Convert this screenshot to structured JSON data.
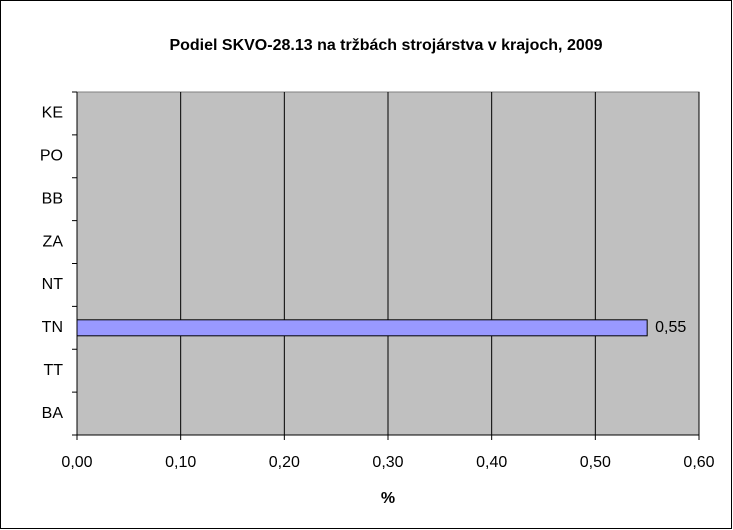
{
  "chart_data": {
    "type": "barh",
    "title": "Podiel SKVO-28.13 na tržbách strojárstva v krajoch, 2009",
    "xlabel": "%",
    "categories": [
      "BA",
      "TT",
      "TN",
      "NT",
      "ZA",
      "BB",
      "PO",
      "KE"
    ],
    "values": [
      null,
      null,
      0.55,
      null,
      null,
      null,
      null,
      null
    ],
    "value_labels": [
      null,
      null,
      "0,55",
      null,
      null,
      null,
      null,
      null
    ],
    "color": "#9999ff",
    "xlim": [
      0,
      0.6
    ],
    "xticks": [
      {
        "value": 0,
        "label": "0,00"
      },
      {
        "value": 0.1,
        "label": "0,10"
      },
      {
        "value": 0.2,
        "label": "0,20"
      },
      {
        "value": 0.3,
        "label": "0,30"
      },
      {
        "value": 0.4,
        "label": "0,40"
      },
      {
        "value": 0.5,
        "label": "0,50"
      },
      {
        "value": 0.6,
        "label": "0,60"
      }
    ],
    "grid": true
  }
}
